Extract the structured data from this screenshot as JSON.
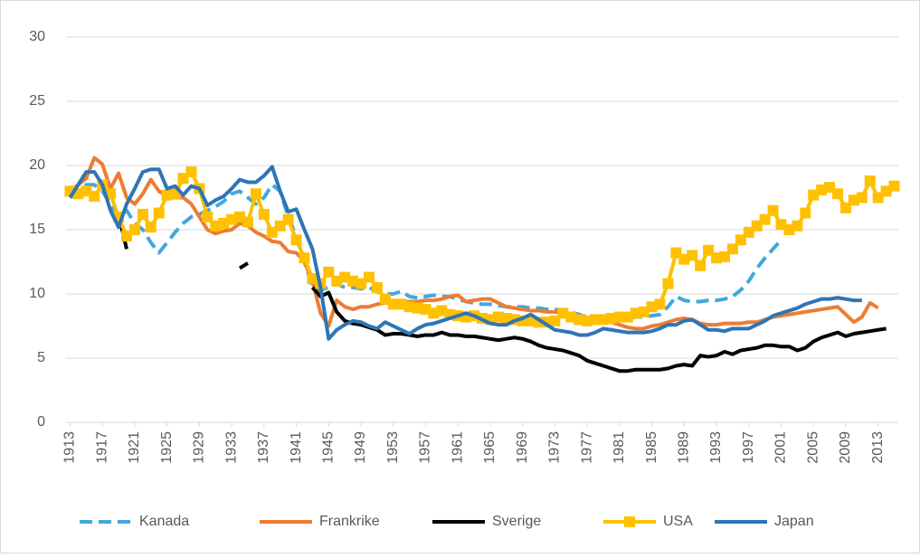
{
  "chart_data": {
    "type": "line",
    "x": [
      1913,
      1914,
      1915,
      1916,
      1917,
      1918,
      1919,
      1920,
      1921,
      1922,
      1923,
      1924,
      1925,
      1926,
      1927,
      1928,
      1929,
      1930,
      1931,
      1932,
      1933,
      1934,
      1935,
      1936,
      1937,
      1938,
      1939,
      1940,
      1941,
      1942,
      1943,
      1944,
      1945,
      1946,
      1947,
      1948,
      1949,
      1950,
      1951,
      1952,
      1953,
      1954,
      1955,
      1956,
      1957,
      1958,
      1959,
      1960,
      1961,
      1962,
      1963,
      1964,
      1965,
      1966,
      1967,
      1968,
      1969,
      1970,
      1971,
      1972,
      1973,
      1974,
      1975,
      1976,
      1977,
      1978,
      1979,
      1980,
      1981,
      1982,
      1983,
      1984,
      1985,
      1986,
      1987,
      1988,
      1989,
      1990,
      1991,
      1992,
      1993,
      1994,
      1995,
      1996,
      1997,
      1998,
      1999,
      2000,
      2001,
      2002,
      2003,
      2004,
      2005,
      2006,
      2007,
      2008,
      2009,
      2010,
      2011,
      2012,
      2013,
      2014,
      2015
    ],
    "xlim": [
      1912.5,
      2015.5
    ],
    "xticks": [
      1913,
      1917,
      1921,
      1925,
      1929,
      1933,
      1937,
      1941,
      1945,
      1949,
      1953,
      1957,
      1961,
      1965,
      1969,
      1973,
      1977,
      1981,
      1985,
      1989,
      1993,
      1997,
      2001,
      2005,
      2009,
      2013
    ],
    "ylim": [
      0,
      30
    ],
    "yticks": [
      0,
      5,
      10,
      15,
      20,
      25,
      30
    ],
    "grid": true,
    "legend": "bottom",
    "series": [
      {
        "name": "Kanada",
        "color": "#41a8dd",
        "dash": true,
        "values": [
          17.5,
          18,
          18.5,
          18.5,
          18,
          17,
          16,
          16.5,
          15.5,
          15,
          14,
          13.2,
          14,
          14.8,
          15.5,
          16,
          16.2,
          16.5,
          16.8,
          17.2,
          17.8,
          18,
          17.5,
          17,
          17.5,
          18.5,
          18,
          16,
          14.5,
          12.5,
          10.5,
          10.3,
          10.5,
          10.8,
          10.5,
          10.5,
          10.4,
          10.5,
          10.2,
          10,
          10,
          10.2,
          9.8,
          9.7,
          9.8,
          9.9,
          9.8,
          9.8,
          9.6,
          9.4,
          9.3,
          9.2,
          9.2,
          9.1,
          9,
          9,
          9,
          8.9,
          8.9,
          8.8,
          8.8,
          8.7,
          8.6,
          8.4,
          8.2,
          8.1,
          8,
          8,
          8.1,
          8.1,
          8.2,
          8.2,
          8.3,
          8.4,
          9,
          9.8,
          9.5,
          9.4,
          9.4,
          9.5,
          9.5,
          9.6,
          9.8,
          10.3,
          11,
          12,
          12.8,
          13.5,
          14.2,
          null,
          null,
          null,
          null,
          null,
          null,
          null,
          null,
          null,
          null,
          null,
          null,
          null,
          null
        ]
      },
      {
        "name": "Frankrike",
        "color": "#ed7d31",
        "values": [
          18,
          18.5,
          19,
          20.6,
          20.1,
          18.2,
          19.4,
          17.5,
          17,
          17.8,
          18.9,
          18,
          17.6,
          17.5,
          17.5,
          17,
          16,
          15,
          14.7,
          14.9,
          15,
          15.5,
          15.3,
          14.8,
          14.5,
          14.1,
          14,
          13.3,
          13.2,
          12.5,
          11,
          8.5,
          7.5,
          9.5,
          9,
          8.8,
          9,
          9,
          9.2,
          9.3,
          9.3,
          9.3,
          9.4,
          9.4,
          9.5,
          9.5,
          9.6,
          9.8,
          9.9,
          9.4,
          9.5,
          9.6,
          9.6,
          9.3,
          9,
          8.9,
          8.8,
          8.7,
          8.7,
          8.6,
          8.6,
          8.5,
          8.3,
          8.1,
          8,
          7.9,
          7.9,
          7.8,
          7.6,
          7.4,
          7.3,
          7.3,
          7.5,
          7.6,
          7.8,
          8,
          8.1,
          8,
          7.7,
          7.6,
          7.6,
          7.7,
          7.7,
          7.7,
          7.8,
          7.8,
          8,
          8.2,
          8.3,
          8.4,
          8.5,
          8.6,
          8.7,
          8.8,
          8.9,
          9,
          8.4,
          7.8,
          8.2,
          9.3,
          8.9,
          null,
          null
        ]
      },
      {
        "name": "Sverige",
        "color": "#000000",
        "values": [
          null,
          null,
          null,
          null,
          null,
          null,
          16.2,
          13.5,
          null,
          null,
          null,
          null,
          null,
          null,
          null,
          null,
          null,
          null,
          null,
          null,
          null,
          12,
          12.4,
          null,
          null,
          null,
          null,
          null,
          null,
          null,
          10.5,
          9.8,
          10.1,
          8.6,
          7.9,
          7.7,
          7.6,
          7.4,
          7.2,
          6.8,
          6.9,
          6.9,
          6.8,
          6.7,
          6.8,
          6.8,
          7,
          6.8,
          6.8,
          6.7,
          6.7,
          6.6,
          6.5,
          6.4,
          6.5,
          6.6,
          6.5,
          6.3,
          6,
          5.8,
          5.7,
          5.6,
          5.4,
          5.2,
          4.8,
          4.6,
          4.4,
          4.2,
          4,
          4,
          4.1,
          4.1,
          4.1,
          4.1,
          4.2,
          4.4,
          4.5,
          4.4,
          5.2,
          5.1,
          5.2,
          5.5,
          5.3,
          5.6,
          5.7,
          5.8,
          6,
          6,
          5.9,
          5.9,
          5.6,
          5.8,
          6.3,
          6.6,
          6.8,
          7,
          6.7,
          6.9,
          7,
          7.1,
          7.2,
          7.3,
          null
        ]
      },
      {
        "name": "USA",
        "color": "#ffc000",
        "marker": "square",
        "values": [
          18,
          17.8,
          18,
          17.6,
          18.5,
          17.8,
          16,
          14.5,
          15,
          16.2,
          15.2,
          16.3,
          17.7,
          17.8,
          19,
          19.5,
          18.2,
          16,
          15.3,
          15.5,
          15.8,
          16,
          15.6,
          17.8,
          16.2,
          14.8,
          15.3,
          15.8,
          14.2,
          12.8,
          11.2,
          10.8,
          11.7,
          11,
          11.3,
          11,
          10.8,
          11.3,
          10.5,
          9.6,
          9.2,
          9.2,
          9,
          8.9,
          8.8,
          8.5,
          8.7,
          8.4,
          8.3,
          8.2,
          8.3,
          8.1,
          8,
          8.2,
          8.1,
          8,
          7.9,
          7.9,
          7.8,
          7.8,
          7.9,
          8.5,
          8.2,
          8,
          7.9,
          8,
          8,
          8.1,
          8.2,
          8.2,
          8.5,
          8.6,
          9,
          9.2,
          10.8,
          13.2,
          12.7,
          13,
          12.2,
          13.4,
          12.8,
          12.9,
          13.5,
          14.2,
          14.8,
          15.3,
          15.8,
          16.5,
          15.4,
          15,
          15.3,
          16.3,
          17.7,
          18.1,
          18.3,
          17.8,
          16.7,
          17.3,
          17.5,
          18.8,
          17.5,
          18,
          18.4
        ]
      },
      {
        "name": "Japan",
        "color": "#2e75b6",
        "values": [
          17.5,
          18.5,
          19.5,
          19.5,
          18.5,
          16.5,
          15.2,
          17,
          18.2,
          19.5,
          19.7,
          19.7,
          18.2,
          18.4,
          17.7,
          18.4,
          18.2,
          16.9,
          17.3,
          17.6,
          18.2,
          18.9,
          18.7,
          18.7,
          19.2,
          19.9,
          18,
          16.4,
          16.6,
          15,
          13.5,
          10.5,
          6.5,
          7.2,
          7.6,
          7.9,
          7.8,
          7.5,
          7.3,
          7.8,
          7.5,
          7.2,
          6.9,
          7.3,
          7.6,
          7.7,
          7.9,
          8.1,
          8.3,
          8.5,
          8.3,
          8,
          7.7,
          7.6,
          7.6,
          7.9,
          8.1,
          8.4,
          8,
          7.6,
          7.2,
          7.1,
          7,
          6.8,
          6.8,
          7,
          7.3,
          7.2,
          7.1,
          7,
          7,
          7,
          7.1,
          7.3,
          7.6,
          7.6,
          7.9,
          8,
          7.6,
          7.2,
          7.2,
          7.1,
          7.3,
          7.3,
          7.3,
          7.6,
          7.9,
          8.3,
          8.5,
          8.7,
          8.9,
          9.2,
          9.4,
          9.6,
          9.6,
          9.7,
          9.6,
          9.5,
          9.5,
          null,
          null,
          null,
          null
        ]
      }
    ]
  }
}
